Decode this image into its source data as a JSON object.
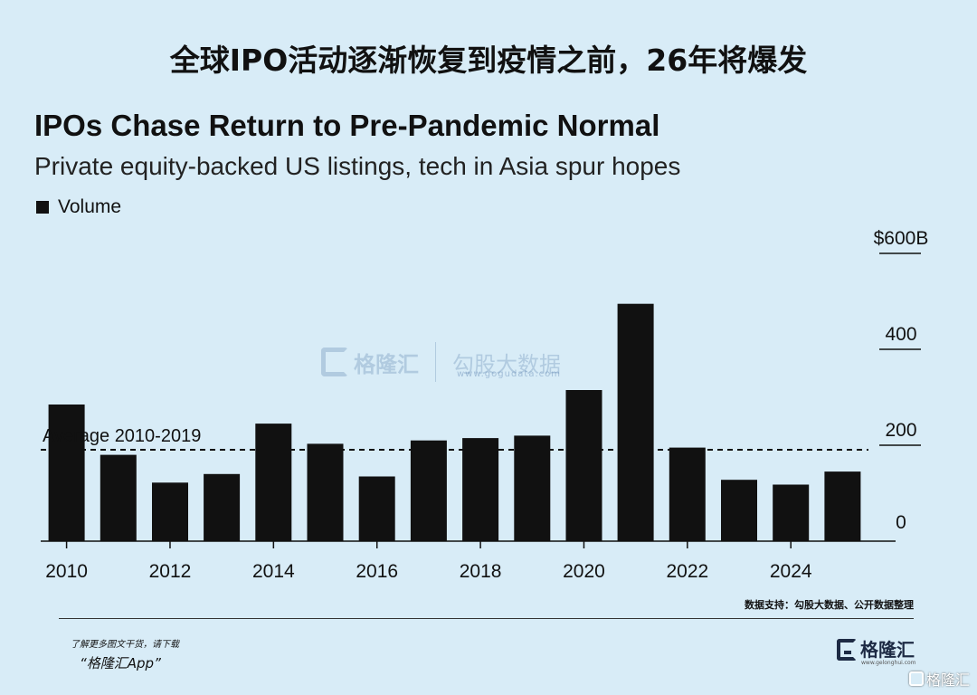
{
  "headline": "全球IPO活动逐渐恢复到疫情之前，26年将爆发",
  "chart_data": {
    "type": "bar",
    "title": "IPOs Chase Return to Pre-Pandemic Normal",
    "subtitle": "Private equity-backed US listings, tech in Asia spur hopes",
    "legend": "Volume",
    "legend_position": "top-left",
    "categories": [
      2010,
      2011,
      2012,
      2013,
      2014,
      2015,
      2016,
      2017,
      2018,
      2019,
      2020,
      2021,
      2022,
      2023,
      2024,
      2025
    ],
    "values": [
      285,
      180,
      122,
      140,
      245,
      203,
      135,
      210,
      215,
      220,
      315,
      495,
      195,
      128,
      118,
      145
    ],
    "x_tick_labels": [
      "2010",
      "2012",
      "2014",
      "2016",
      "2018",
      "2020",
      "2022",
      "2024"
    ],
    "y_tick_labels": [
      "0",
      "200",
      "400",
      "$600B"
    ],
    "y_ticks": [
      0,
      200,
      400,
      600
    ],
    "ylim": [
      0,
      600
    ],
    "reference_line": {
      "label": "Average 2010-2019",
      "value": 200
    },
    "bar_color": "#111111",
    "grid": false
  },
  "watermark": {
    "brand": "格隆汇",
    "partner": "勾股大数据",
    "url": "www.gogudata.com"
  },
  "footer": {
    "source": "数据支持：勾股大数据、公开数据整理",
    "download_note": "了解更多图文干货，请下载",
    "app_name": "“格隆汇App”",
    "brand_logo": "格隆汇",
    "brand_sub": "www.gelonghui.com",
    "corner_mark": "格隆汇"
  },
  "colors": {
    "background": "#d8ecf7",
    "brand": "#1d2a44"
  }
}
